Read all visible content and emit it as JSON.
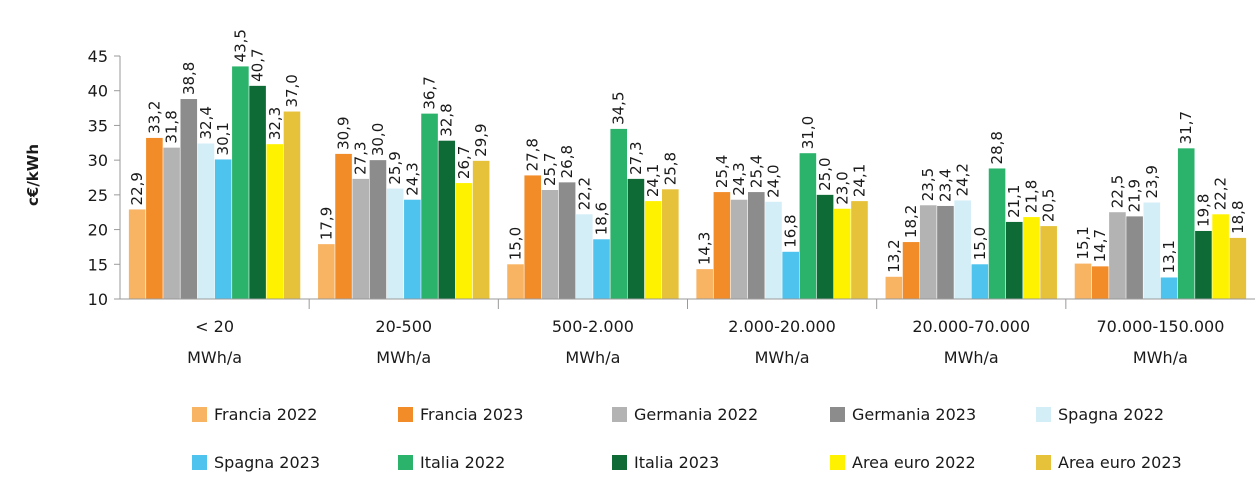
{
  "chart_data": {
    "type": "bar",
    "ylabel": "c€/kWh",
    "ylim": [
      10,
      45
    ],
    "yticks": [
      10,
      15,
      20,
      25,
      30,
      35,
      40,
      45
    ],
    "categories": [
      [
        "< 20",
        "MWh/a"
      ],
      [
        "20-500",
        "MWh/a"
      ],
      [
        "500-2.000",
        "MWh/a"
      ],
      [
        "2.000-20.000",
        "MWh/a"
      ],
      [
        "20.000-70.000",
        "MWh/a"
      ],
      [
        "70.000-150.000",
        "MWh/a"
      ]
    ],
    "legend_position": "bottom",
    "series": [
      {
        "name": "Francia 2022",
        "color": "#f8b463",
        "values": [
          22.9,
          17.9,
          15.0,
          14.3,
          13.2,
          15.1
        ],
        "labels": [
          "22,9",
          "17,9",
          "15,0",
          "14,3",
          "13,2",
          "15,1"
        ]
      },
      {
        "name": "Francia 2023",
        "color": "#f28c28",
        "values": [
          33.2,
          30.9,
          27.8,
          25.4,
          18.2,
          14.7
        ],
        "labels": [
          "33,2",
          "30,9",
          "27,8",
          "25,4",
          "18,2",
          "14,7"
        ]
      },
      {
        "name": "Germania 2022",
        "color": "#b3b3b3",
        "values": [
          31.8,
          27.3,
          25.7,
          24.3,
          23.5,
          22.5
        ],
        "labels": [
          "31,8",
          "27,3",
          "25,7",
          "24,3",
          "23,5",
          "22,5"
        ]
      },
      {
        "name": "Germania 2023",
        "color": "#8c8c8c",
        "values": [
          38.8,
          30.0,
          26.8,
          25.4,
          23.4,
          21.9
        ],
        "labels": [
          "38,8",
          "30,0",
          "26,8",
          "25,4",
          "23,4",
          "21,9"
        ]
      },
      {
        "name": "Spagna 2022",
        "color": "#d4eef7",
        "values": [
          32.4,
          25.9,
          22.2,
          24.0,
          24.2,
          23.9
        ],
        "labels": [
          "32,4",
          "25,9",
          "22,2",
          "24,0",
          "24,2",
          "23,9"
        ]
      },
      {
        "name": "Spagna 2023",
        "color": "#4ec3ee",
        "values": [
          30.1,
          24.3,
          18.6,
          16.8,
          15.0,
          13.1
        ],
        "labels": [
          "30,1",
          "24,3",
          "18,6",
          "16,8",
          "15,0",
          "13,1"
        ]
      },
      {
        "name": "Italia 2022",
        "color": "#2bb36b",
        "values": [
          43.5,
          36.7,
          34.5,
          31.0,
          28.8,
          31.7
        ],
        "labels": [
          "43,5",
          "36,7",
          "34,5",
          "31,0",
          "28,8",
          "31,7"
        ]
      },
      {
        "name": "Italia 2023",
        "color": "#0e6b35",
        "values": [
          40.7,
          32.8,
          27.3,
          25.0,
          21.1,
          19.8
        ],
        "labels": [
          "40,7",
          "32,8",
          "27,3",
          "25,0",
          "21,1",
          "19,8"
        ]
      },
      {
        "name": "Area euro 2022",
        "color": "#fff200",
        "values": [
          32.3,
          26.7,
          24.1,
          23.0,
          21.8,
          22.2
        ],
        "labels": [
          "32,3",
          "26,7",
          "24,1",
          "23,0",
          "21,8",
          "22,2"
        ]
      },
      {
        "name": "Area euro 2023",
        "color": "#e6c13a",
        "values": [
          37.0,
          29.9,
          25.8,
          24.1,
          20.5,
          18.8
        ],
        "labels": [
          "37,0",
          "29,9",
          "25,8",
          "24,1",
          "20,5",
          "18,8"
        ]
      }
    ]
  }
}
